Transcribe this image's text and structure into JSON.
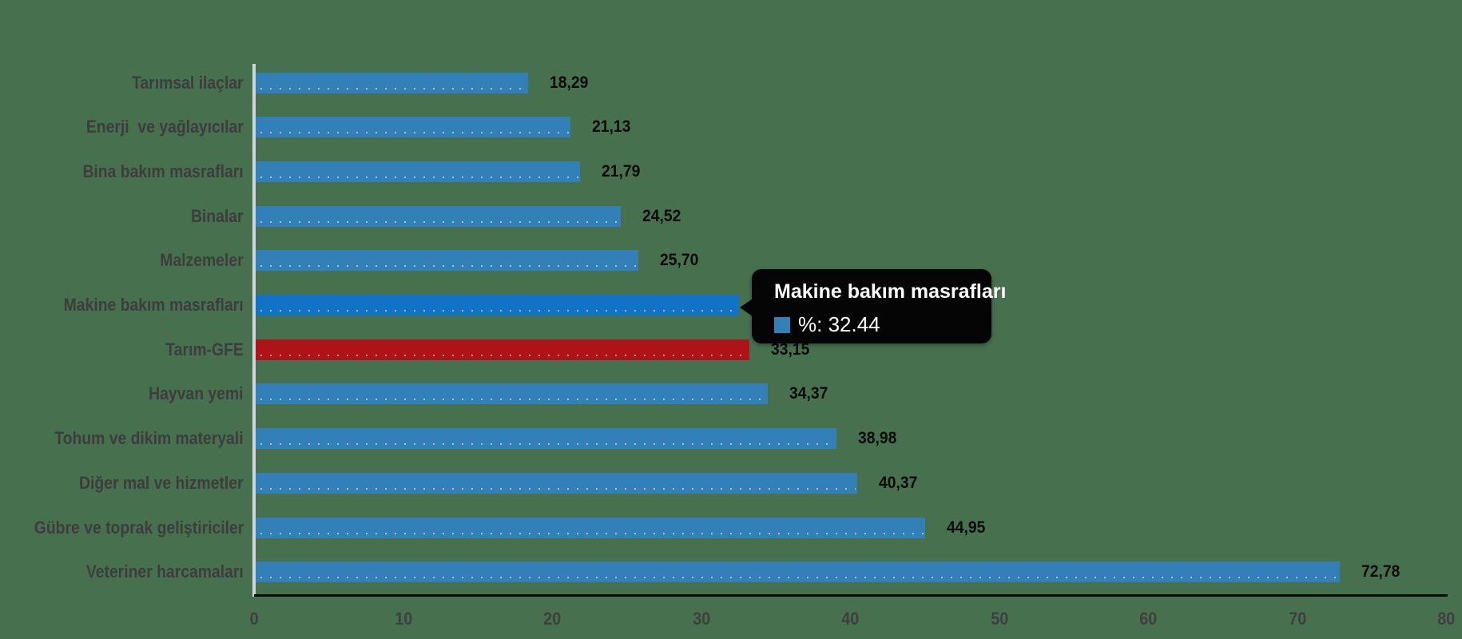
{
  "chart_data": {
    "type": "bar",
    "orientation": "horizontal",
    "categories": [
      "Tarımsal ilaçlar",
      "Enerji  ve yağlayıcılar",
      "Bina bakım masrafları",
      "Binalar",
      "Malzemeler",
      "Makine bakım masrafları",
      "Tarım-GFE",
      "Hayvan yemi",
      "Tohum ve dikim materyali",
      "Diğer mal ve hizmetler",
      "Gübre ve toprak geliştiriciler",
      "Veteriner harcamaları"
    ],
    "values": [
      18.29,
      21.13,
      21.79,
      24.52,
      25.7,
      32.44,
      33.15,
      34.37,
      38.98,
      40.37,
      44.95,
      72.78
    ],
    "value_labels": [
      "18,29",
      "21,13",
      "21,79",
      "24,52",
      "25,70",
      "32,44",
      "33,15",
      "34,37",
      "38,98",
      "40,37",
      "44,95",
      "72,78"
    ],
    "highlight_index": 5,
    "reference_index": 6,
    "xlabel": "",
    "ylabel": "",
    "xlim": [
      0,
      80
    ],
    "grid": false,
    "x_ticks": [
      "0",
      "10",
      "20",
      "30",
      "40",
      "50",
      "60",
      "70",
      "80"
    ],
    "x_tick_values": [
      0,
      10,
      20,
      30,
      40,
      50,
      60,
      70,
      80
    ],
    "colors": {
      "bar": "#3380B8",
      "bar_highlight": "#1173C6",
      "bar_reference": "#AE1318",
      "background": "#47714E",
      "value_text": "#0A0A0A",
      "category_text": "#3D3D3D",
      "tooltip_bg": "#050505",
      "tooltip_text": "#FFFFFF"
    },
    "tooltip": {
      "title": "Makine bakım masrafları",
      "value_text": "%: 32.44",
      "series_name": "%",
      "value": 32.44
    }
  }
}
